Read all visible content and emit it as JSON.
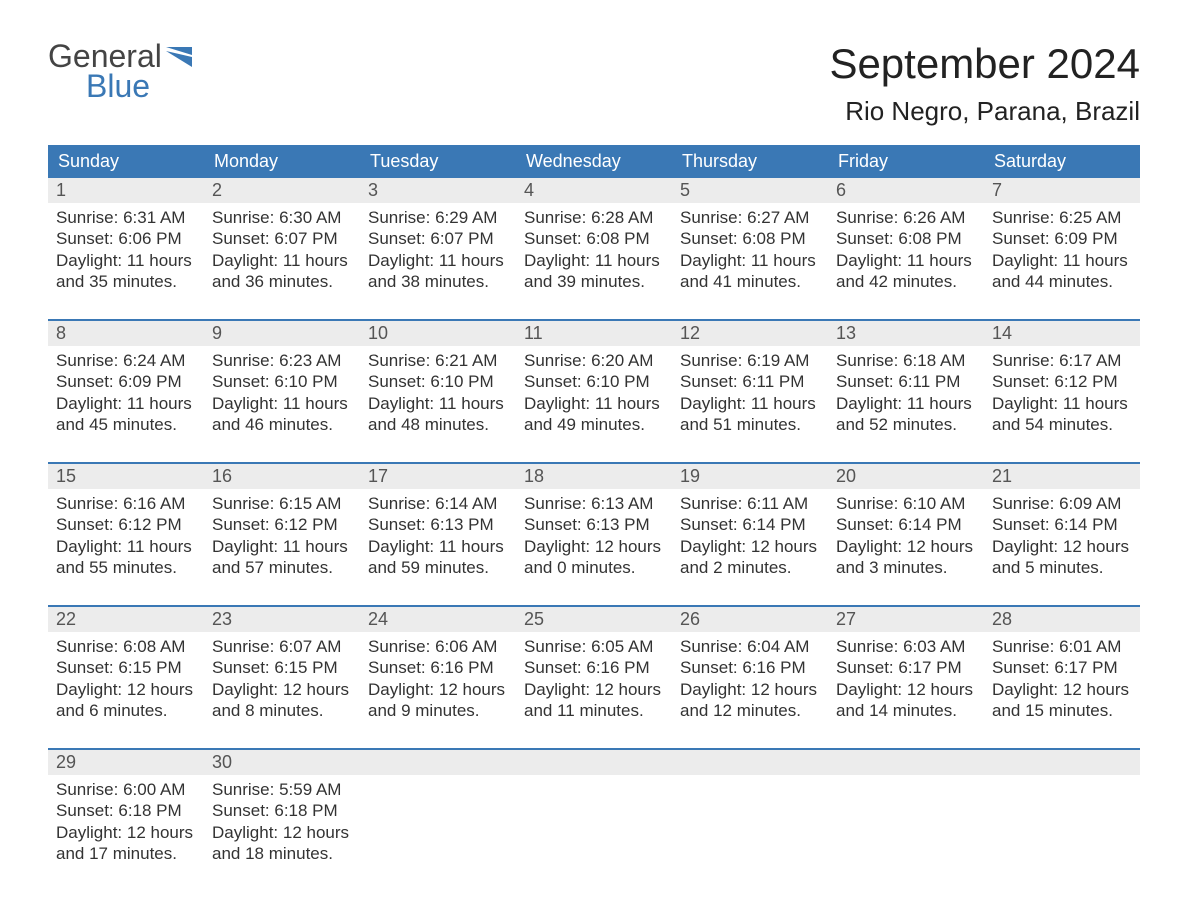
{
  "logo": {
    "top": "General",
    "bottom": "Blue"
  },
  "title": "September 2024",
  "location": "Rio Negro, Parana, Brazil",
  "colors": {
    "header_bg": "#3a78b5",
    "header_text": "#ffffff",
    "daynum_bg": "#ececec",
    "text": "#333333",
    "rule": "#3a78b5"
  },
  "day_names": [
    "Sunday",
    "Monday",
    "Tuesday",
    "Wednesday",
    "Thursday",
    "Friday",
    "Saturday"
  ],
  "weeks": [
    [
      {
        "n": "1",
        "sunrise": "6:31 AM",
        "sunset": "6:06 PM",
        "daylight": "11 hours and 35 minutes."
      },
      {
        "n": "2",
        "sunrise": "6:30 AM",
        "sunset": "6:07 PM",
        "daylight": "11 hours and 36 minutes."
      },
      {
        "n": "3",
        "sunrise": "6:29 AM",
        "sunset": "6:07 PM",
        "daylight": "11 hours and 38 minutes."
      },
      {
        "n": "4",
        "sunrise": "6:28 AM",
        "sunset": "6:08 PM",
        "daylight": "11 hours and 39 minutes."
      },
      {
        "n": "5",
        "sunrise": "6:27 AM",
        "sunset": "6:08 PM",
        "daylight": "11 hours and 41 minutes."
      },
      {
        "n": "6",
        "sunrise": "6:26 AM",
        "sunset": "6:08 PM",
        "daylight": "11 hours and 42 minutes."
      },
      {
        "n": "7",
        "sunrise": "6:25 AM",
        "sunset": "6:09 PM",
        "daylight": "11 hours and 44 minutes."
      }
    ],
    [
      {
        "n": "8",
        "sunrise": "6:24 AM",
        "sunset": "6:09 PM",
        "daylight": "11 hours and 45 minutes."
      },
      {
        "n": "9",
        "sunrise": "6:23 AM",
        "sunset": "6:10 PM",
        "daylight": "11 hours and 46 minutes."
      },
      {
        "n": "10",
        "sunrise": "6:21 AM",
        "sunset": "6:10 PM",
        "daylight": "11 hours and 48 minutes."
      },
      {
        "n": "11",
        "sunrise": "6:20 AM",
        "sunset": "6:10 PM",
        "daylight": "11 hours and 49 minutes."
      },
      {
        "n": "12",
        "sunrise": "6:19 AM",
        "sunset": "6:11 PM",
        "daylight": "11 hours and 51 minutes."
      },
      {
        "n": "13",
        "sunrise": "6:18 AM",
        "sunset": "6:11 PM",
        "daylight": "11 hours and 52 minutes."
      },
      {
        "n": "14",
        "sunrise": "6:17 AM",
        "sunset": "6:12 PM",
        "daylight": "11 hours and 54 minutes."
      }
    ],
    [
      {
        "n": "15",
        "sunrise": "6:16 AM",
        "sunset": "6:12 PM",
        "daylight": "11 hours and 55 minutes."
      },
      {
        "n": "16",
        "sunrise": "6:15 AM",
        "sunset": "6:12 PM",
        "daylight": "11 hours and 57 minutes."
      },
      {
        "n": "17",
        "sunrise": "6:14 AM",
        "sunset": "6:13 PM",
        "daylight": "11 hours and 59 minutes."
      },
      {
        "n": "18",
        "sunrise": "6:13 AM",
        "sunset": "6:13 PM",
        "daylight": "12 hours and 0 minutes."
      },
      {
        "n": "19",
        "sunrise": "6:11 AM",
        "sunset": "6:14 PM",
        "daylight": "12 hours and 2 minutes."
      },
      {
        "n": "20",
        "sunrise": "6:10 AM",
        "sunset": "6:14 PM",
        "daylight": "12 hours and 3 minutes."
      },
      {
        "n": "21",
        "sunrise": "6:09 AM",
        "sunset": "6:14 PM",
        "daylight": "12 hours and 5 minutes."
      }
    ],
    [
      {
        "n": "22",
        "sunrise": "6:08 AM",
        "sunset": "6:15 PM",
        "daylight": "12 hours and 6 minutes."
      },
      {
        "n": "23",
        "sunrise": "6:07 AM",
        "sunset": "6:15 PM",
        "daylight": "12 hours and 8 minutes."
      },
      {
        "n": "24",
        "sunrise": "6:06 AM",
        "sunset": "6:16 PM",
        "daylight": "12 hours and 9 minutes."
      },
      {
        "n": "25",
        "sunrise": "6:05 AM",
        "sunset": "6:16 PM",
        "daylight": "12 hours and 11 minutes."
      },
      {
        "n": "26",
        "sunrise": "6:04 AM",
        "sunset": "6:16 PM",
        "daylight": "12 hours and 12 minutes."
      },
      {
        "n": "27",
        "sunrise": "6:03 AM",
        "sunset": "6:17 PM",
        "daylight": "12 hours and 14 minutes."
      },
      {
        "n": "28",
        "sunrise": "6:01 AM",
        "sunset": "6:17 PM",
        "daylight": "12 hours and 15 minutes."
      }
    ],
    [
      {
        "n": "29",
        "sunrise": "6:00 AM",
        "sunset": "6:18 PM",
        "daylight": "12 hours and 17 minutes."
      },
      {
        "n": "30",
        "sunrise": "5:59 AM",
        "sunset": "6:18 PM",
        "daylight": "12 hours and 18 minutes."
      },
      null,
      null,
      null,
      null,
      null
    ]
  ],
  "labels": {
    "sunrise": "Sunrise: ",
    "sunset": "Sunset: ",
    "daylight": "Daylight: "
  }
}
